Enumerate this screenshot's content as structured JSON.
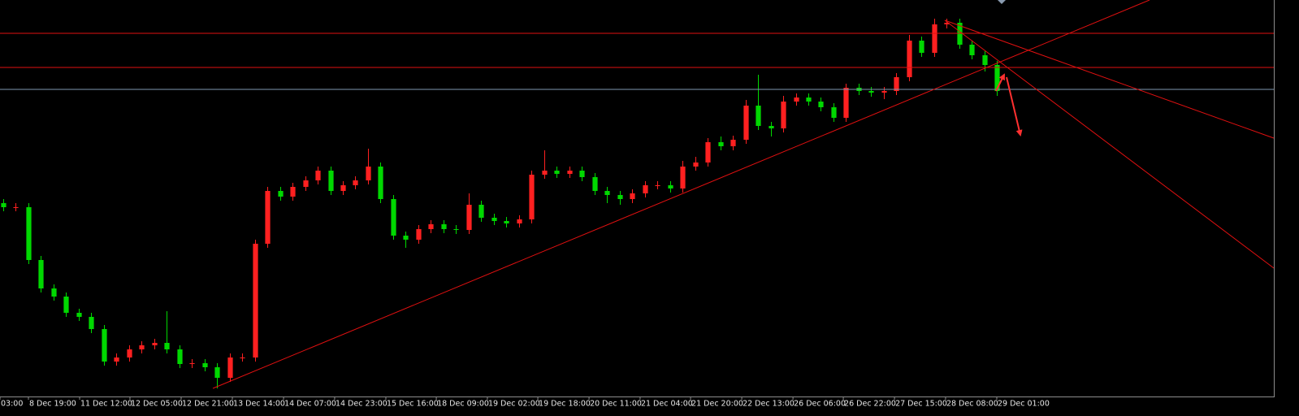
{
  "chart_data": {
    "type": "candlestick",
    "up_color": "#ff2020",
    "down_color": "#00d800",
    "xlim": [
      -0.25,
      101
    ],
    "ylim": [
      0,
      488
    ],
    "xticks": [
      {
        "value": -0.25,
        "label": "03:00"
      },
      {
        "value": 2.01,
        "label": "8 Dec 19:00"
      },
      {
        "value": 6.08,
        "label": "11 Dec 12:00"
      },
      {
        "value": 10.08,
        "label": "12 Dec 05:00"
      },
      {
        "value": 14.15,
        "label": "12 Dec 21:00"
      },
      {
        "value": 18.22,
        "label": "13 Dec 14:00"
      },
      {
        "value": 22.29,
        "label": "14 Dec 07:00"
      },
      {
        "value": 26.35,
        "label": "14 Dec 23:00"
      },
      {
        "value": 30.42,
        "label": "15 Dec 16:00"
      },
      {
        "value": 34.43,
        "label": "18 Dec 09:00"
      },
      {
        "value": 38.49,
        "label": "19 Dec 02:00"
      },
      {
        "value": 42.5,
        "label": "19 Dec 18:00"
      },
      {
        "value": 46.57,
        "label": "20 Dec 11:00"
      },
      {
        "value": 50.63,
        "label": "21 Dec 04:00"
      },
      {
        "value": 54.64,
        "label": "21 Dec 20:00"
      },
      {
        "value": 58.71,
        "label": "22 Dec 13:00"
      },
      {
        "value": 62.78,
        "label": "26 Dec 06:00"
      },
      {
        "value": 66.78,
        "label": "26 Dec 22:00"
      },
      {
        "value": 70.85,
        "label": "27 Dec 15:00"
      },
      {
        "value": 74.91,
        "label": "28 Dec 08:00"
      },
      {
        "value": 78.98,
        "label": "29 Dec 01:00"
      }
    ],
    "open": [
      238,
      233,
      233,
      168,
      133,
      123,
      103,
      98,
      83,
      43,
      48,
      58,
      63,
      66,
      58,
      40,
      41,
      36,
      23,
      48,
      48,
      188,
      253,
      246,
      258,
      266,
      278,
      253,
      260,
      266,
      283,
      243,
      198,
      193,
      206,
      212,
      206,
      205,
      236,
      220,
      216,
      213,
      218,
      273,
      278,
      274,
      278,
      270,
      253,
      248,
      243,
      250,
      260,
      260,
      256,
      283,
      288,
      313,
      308,
      316,
      358,
      333,
      330,
      363,
      368,
      363,
      356,
      343,
      380,
      376,
      374,
      376,
      393,
      438,
      423,
      458,
      460,
      433,
      420,
      408
    ],
    "high": [
      243,
      238,
      238,
      173,
      138,
      128,
      108,
      103,
      88,
      53,
      63,
      68,
      71,
      105,
      63,
      46,
      46,
      41,
      53,
      53,
      193,
      258,
      258,
      263,
      271,
      283,
      283,
      265,
      271,
      305,
      288,
      248,
      203,
      211,
      217,
      217,
      211,
      250,
      241,
      225,
      221,
      223,
      278,
      303,
      283,
      283,
      283,
      275,
      258,
      253,
      255,
      265,
      265,
      265,
      290,
      295,
      318,
      320,
      321,
      365,
      396,
      338,
      370,
      373,
      373,
      368,
      361,
      385,
      385,
      381,
      381,
      398,
      445,
      443,
      465,
      465,
      465,
      438,
      425,
      413
    ],
    "low": [
      228,
      228,
      163,
      128,
      118,
      98,
      93,
      78,
      38,
      38,
      43,
      53,
      58,
      53,
      35,
      35,
      31,
      10,
      18,
      43,
      43,
      183,
      241,
      241,
      253,
      261,
      248,
      248,
      255,
      261,
      238,
      193,
      183,
      188,
      201,
      201,
      200,
      200,
      215,
      211,
      208,
      208,
      213,
      268,
      269,
      269,
      265,
      248,
      238,
      236,
      238,
      245,
      255,
      251,
      251,
      278,
      283,
      303,
      303,
      311,
      328,
      320,
      325,
      358,
      358,
      351,
      338,
      338,
      371,
      369,
      366,
      371,
      388,
      418,
      418,
      453,
      428,
      415,
      400,
      370
    ],
    "close": [
      233,
      233,
      168,
      133,
      123,
      103,
      98,
      83,
      43,
      48,
      58,
      63,
      66,
      58,
      40,
      41,
      36,
      23,
      48,
      48,
      188,
      253,
      246,
      258,
      266,
      278,
      253,
      260,
      266,
      283,
      243,
      198,
      193,
      206,
      212,
      206,
      205,
      236,
      220,
      216,
      213,
      218,
      273,
      278,
      274,
      278,
      270,
      253,
      248,
      243,
      250,
      260,
      260,
      256,
      283,
      288,
      313,
      308,
      316,
      358,
      333,
      330,
      363,
      368,
      363,
      356,
      343,
      380,
      376,
      374,
      376,
      393,
      438,
      423,
      458,
      460,
      433,
      420,
      408,
      376
    ]
  }
}
